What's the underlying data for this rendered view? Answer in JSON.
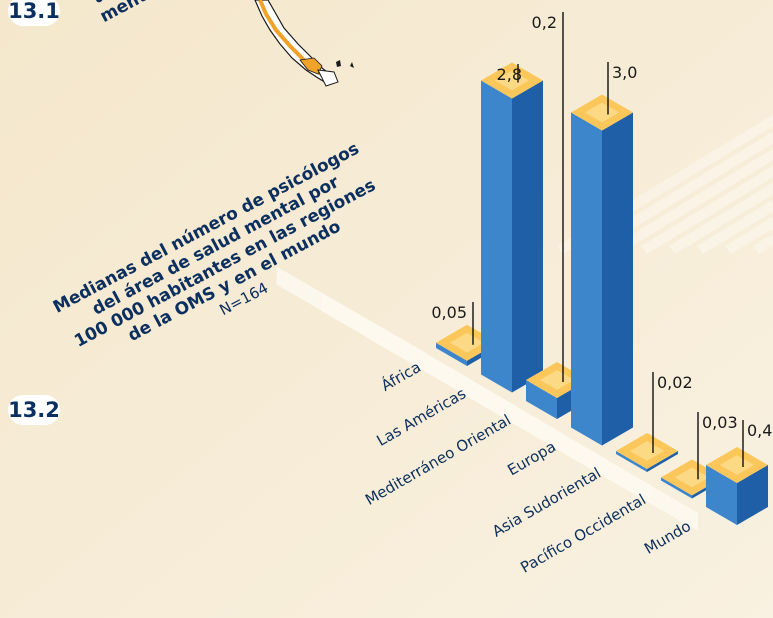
{
  "section_131": {
    "number": "13.1",
    "title_fragments": [
      "ps",
      "área d",
      "mental"
    ]
  },
  "section_132": {
    "number": "13.2",
    "title_lines": [
      "Medianas del número de psicólogos",
      "del área de salud mental por",
      "100 000 habitantes en las regiones",
      "de la OMS y en el mundo"
    ],
    "n_label": "N=164"
  },
  "chart_data": {
    "type": "bar",
    "title": "Medianas del número de psicólogos del área de salud mental por 100 000 habitantes en las regiones de la OMS y en el mundo",
    "subtitle": "N=164",
    "categories": [
      "África",
      "Las Américas",
      "Mediterráneo Oriental",
      "Europa",
      "Asia Sudoriental",
      "Pacífico Occidental",
      "Mundo"
    ],
    "values": [
      0.05,
      2.8,
      0.2,
      3.0,
      0.02,
      0.03,
      0.4
    ],
    "labels": [
      "0,05",
      "2,8",
      "0,2",
      "3,0",
      "0,02",
      "0,03",
      "0,4"
    ],
    "xlabel": "",
    "ylabel": "",
    "style": "3d-isometric",
    "colors": {
      "bar_front": "#3d86cc",
      "bar_side": "#1f5fa8",
      "bar_top": "#fbc75b",
      "label_band": "#fdf8ee",
      "leader_line": "#111111",
      "title_text": "#0b2f5e",
      "background": "#f7edd9"
    }
  }
}
